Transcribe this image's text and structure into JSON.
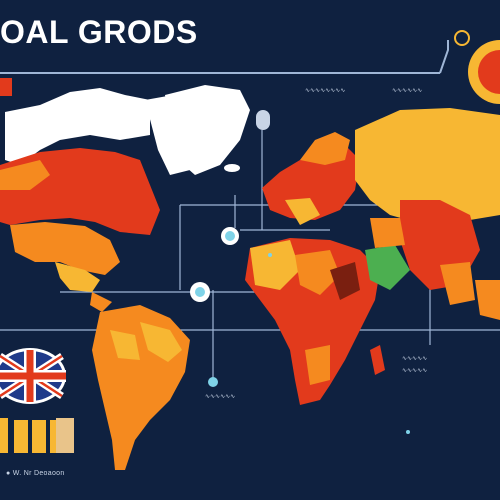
{
  "title": "OAL GRODS",
  "footer": "● W. Nr Deoaoon",
  "annotations": {
    "top_center": "∿∿∿∿∿∿∿∿",
    "top_right": "∿∿∿∿∿∿",
    "right_mid_1": "∿∿∿∿∿",
    "right_mid_2": "∿∿∿∿∿",
    "bottom_center": "∿∿∿∿∿∿"
  },
  "colors": {
    "background": "#0f2140",
    "white": "#ffffff",
    "red": "#e23a1c",
    "orange": "#f58a1f",
    "yellow": "#f7b733",
    "green": "#4caf50",
    "dark_red": "#7a1f10",
    "line": "#9fb6d6",
    "accent_teal": "#7fd3e8"
  },
  "icons": {
    "flag": "uk-flag-icon",
    "markers": [
      "map-pin-icon",
      "map-pin-icon",
      "map-pin-icon"
    ],
    "badge": "orange-circle-badge-icon"
  }
}
